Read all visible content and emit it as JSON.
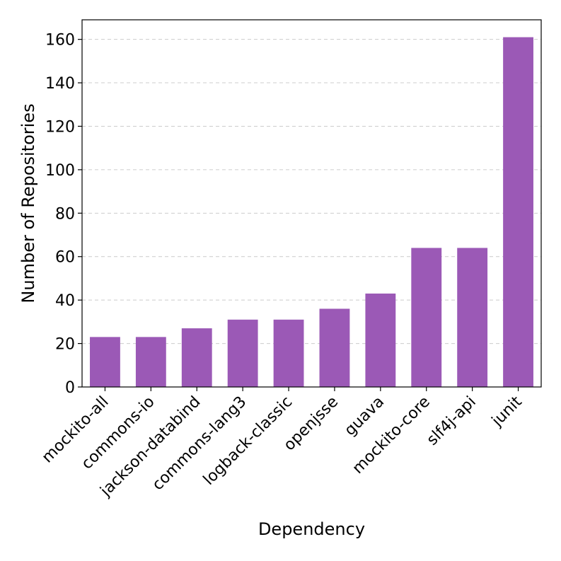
{
  "chart_data": {
    "type": "bar",
    "title": "",
    "xlabel": "Dependency",
    "ylabel": "Number of Repositories",
    "categories": [
      "mockito-all",
      "commons-io",
      "jackson-databind",
      "commons-lang3",
      "logback-classic",
      "openjsse",
      "guava",
      "mockito-core",
      "slf4j-api",
      "junit"
    ],
    "values": [
      23,
      23,
      27,
      31,
      31,
      36,
      43,
      64,
      64,
      161
    ],
    "ylim": [
      0,
      169
    ],
    "yticks": [
      0,
      20,
      40,
      60,
      80,
      100,
      120,
      140,
      160
    ],
    "grid": "y-dashed",
    "bar_color": "#9b59b6",
    "legend": "none"
  }
}
